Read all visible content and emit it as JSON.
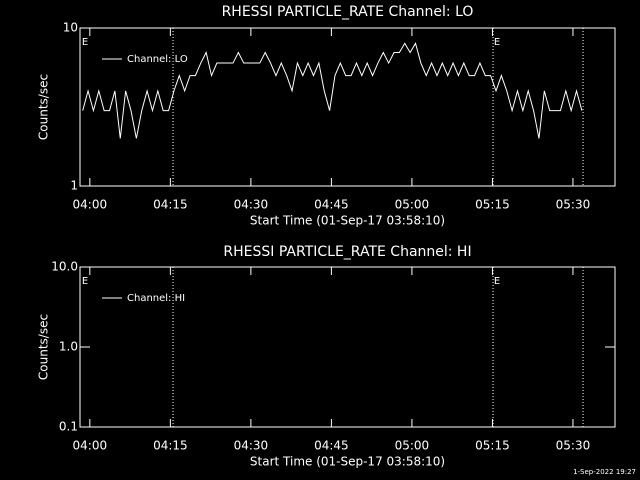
{
  "chart_data": [
    {
      "type": "line",
      "title": "RHESSI PARTICLE_RATE Channel: LO",
      "xlabel": "Start Time (01-Sep-17 03:58:10)",
      "ylabel": "Counts/sec",
      "x": [
        30,
        90,
        150,
        210,
        270,
        330,
        390,
        450,
        510,
        570,
        630,
        690,
        750,
        810,
        870,
        930,
        990,
        1050,
        1110,
        1170,
        1230,
        1290,
        1350,
        1410,
        1470,
        1530,
        1590,
        1650,
        1710,
        1770,
        1830,
        1890,
        1950,
        2010,
        2070,
        2130,
        2190,
        2250,
        2310,
        2370,
        2430,
        2490,
        2550,
        2610,
        2670,
        2730,
        2790,
        2850,
        2910,
        2970,
        3030,
        3090,
        3150,
        3210,
        3270,
        3330,
        3390,
        3450,
        3510,
        3570,
        3630,
        3690,
        3750,
        3810,
        3870,
        3930,
        3990,
        4050,
        4110,
        4170,
        4230,
        4290,
        4350,
        4410,
        4470,
        4530,
        4590,
        4650,
        4710,
        4770,
        4830,
        4890,
        4950,
        5010,
        5070,
        5130,
        5190,
        5250,
        5310,
        5370,
        5430,
        5490,
        5550,
        5610
      ],
      "series": [
        {
          "name": "Channel: LO",
          "color": "#ffffff",
          "values": [
            3,
            4,
            3,
            4,
            3,
            3,
            4,
            2,
            4,
            3,
            2,
            3,
            4,
            3,
            4,
            3,
            3,
            4,
            5,
            4,
            5,
            5,
            6,
            7,
            5,
            6,
            6,
            6,
            6,
            7,
            6,
            6,
            6,
            6,
            7,
            6,
            5,
            6,
            5,
            4,
            6,
            5,
            6,
            5,
            6,
            4,
            3,
            5,
            6,
            5,
            5,
            6,
            5,
            6,
            5,
            6,
            7,
            6,
            7,
            7,
            8,
            7,
            8,
            6,
            5,
            6,
            5,
            6,
            5,
            6,
            5,
            6,
            5,
            5,
            6,
            5,
            5,
            4,
            5,
            4,
            3,
            4,
            3,
            4,
            3,
            2,
            4,
            3,
            3,
            3,
            4,
            3,
            4,
            3
          ]
        }
      ],
      "xlim": [
        0,
        5980
      ],
      "ylim": [
        1,
        10
      ],
      "yscale": "log",
      "xticks": [
        {
          "value": 110,
          "label": "04:00"
        },
        {
          "value": 1010,
          "label": "04:15"
        },
        {
          "value": 1910,
          "label": "04:30"
        },
        {
          "value": 2810,
          "label": "04:45"
        },
        {
          "value": 3710,
          "label": "05:00"
        },
        {
          "value": 4610,
          "label": "05:15"
        },
        {
          "value": 5510,
          "label": "05:30"
        }
      ],
      "yticks": [
        1,
        10
      ],
      "vlines": [
        1040,
        4617,
        5623
      ],
      "annotations": [
        {
          "text": "E",
          "x": 56
        },
        {
          "text": "E",
          "x": 4662
        }
      ],
      "legend": "upper left"
    },
    {
      "type": "line",
      "title": "RHESSI PARTICLE_RATE Channel: HI",
      "xlabel": "Start Time (01-Sep-17 03:58:10)",
      "ylabel": "Counts/sec",
      "x": [],
      "series": [
        {
          "name": "Channel: HI",
          "color": "#ffffff",
          "values": []
        }
      ],
      "xlim": [
        0,
        5980
      ],
      "ylim": [
        0.1,
        10
      ],
      "yscale": "log",
      "xticks": [
        {
          "value": 110,
          "label": "04:00"
        },
        {
          "value": 1010,
          "label": "04:15"
        },
        {
          "value": 1910,
          "label": "04:30"
        },
        {
          "value": 2810,
          "label": "04:45"
        },
        {
          "value": 3710,
          "label": "05:00"
        },
        {
          "value": 4610,
          "label": "05:15"
        },
        {
          "value": 5510,
          "label": "05:30"
        }
      ],
      "yticks": [
        0.1,
        {
          "value": 1,
          "label": "1.0"
        },
        {
          "value": 10,
          "label": "10.0"
        }
      ],
      "vlines": [
        1040,
        4617,
        5623
      ],
      "annotations": [
        {
          "text": "E",
          "x": 56
        },
        {
          "text": "E",
          "x": 4662
        }
      ],
      "legend": "upper left"
    }
  ],
  "footer": "1-Sep-2022 19:27"
}
